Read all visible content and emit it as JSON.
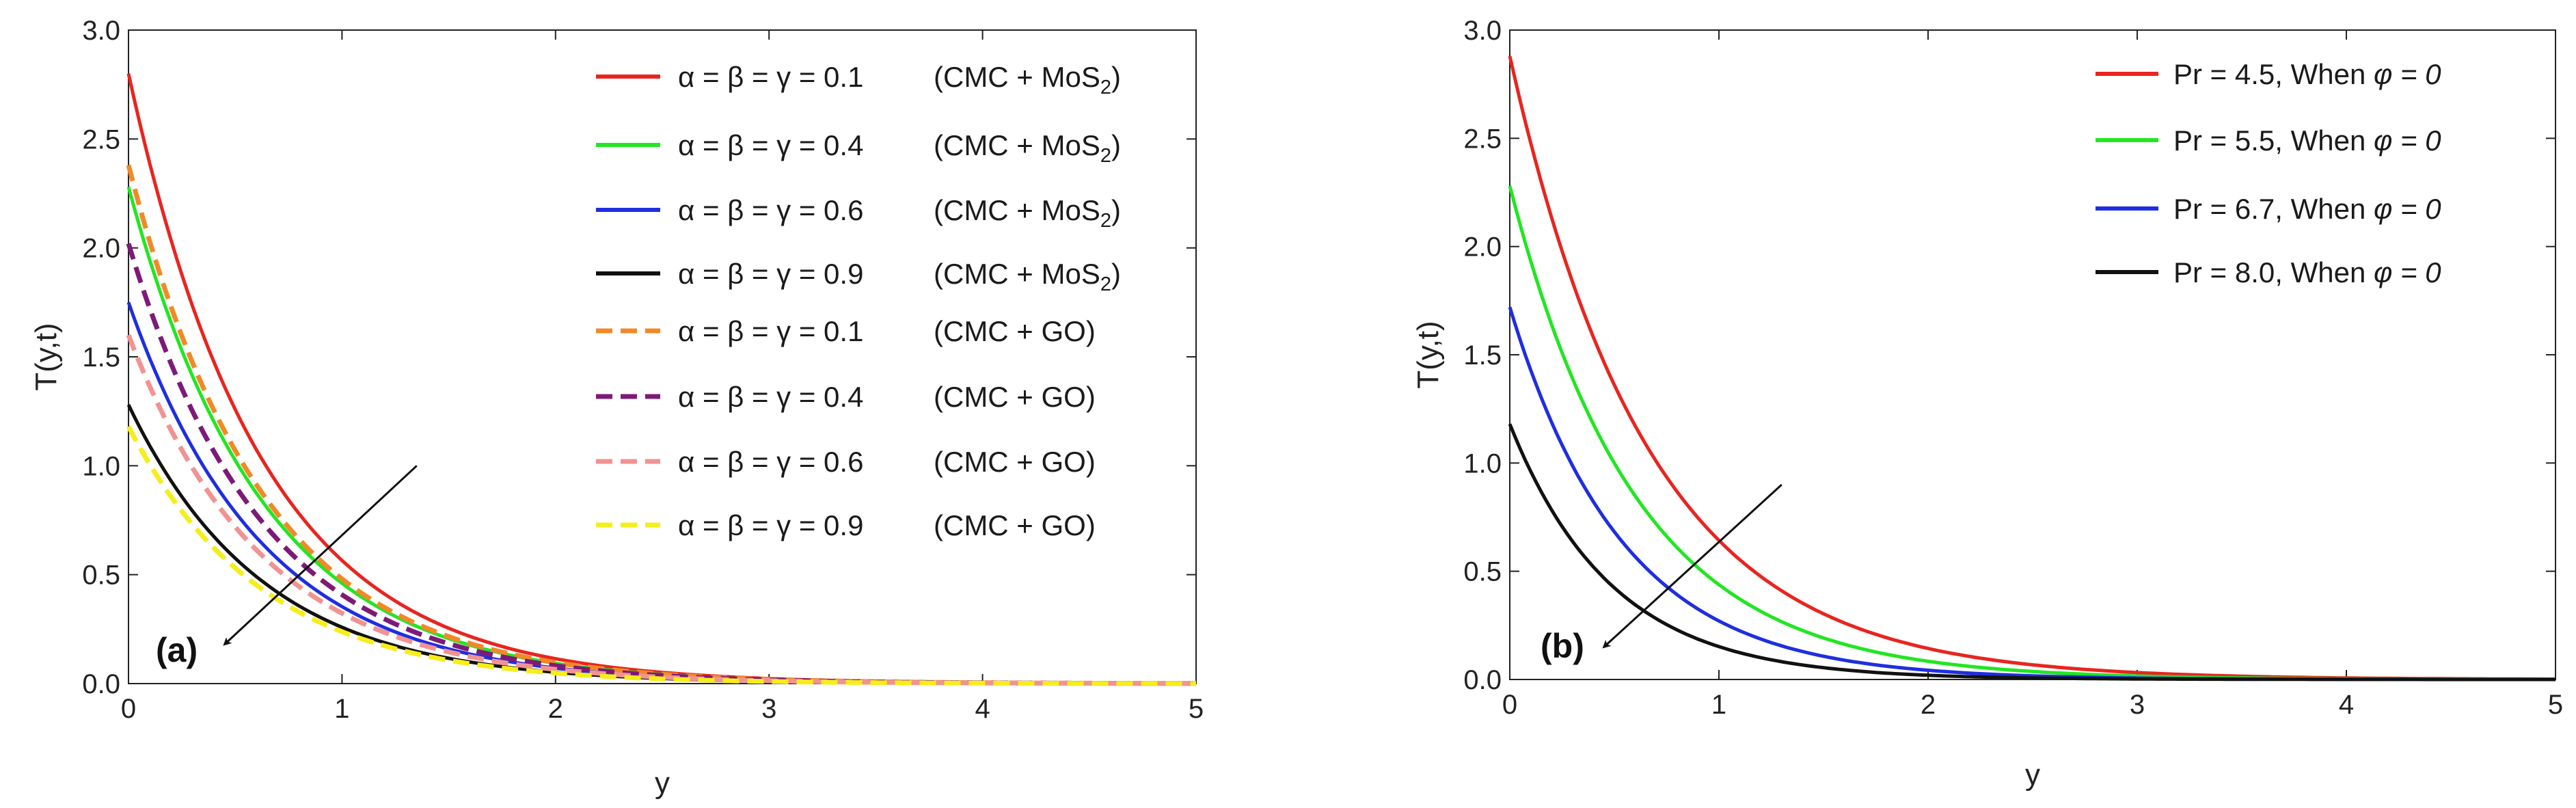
{
  "colors": {
    "red": "#e8251f",
    "green": "#22e622",
    "blue": "#1f2ee0",
    "black": "#111111",
    "orange": "#f08a28",
    "purple": "#7d1a78",
    "pink": "#f29292",
    "yellow": "#f5ee1a"
  },
  "chart_data": [
    {
      "type": "line",
      "panel_label": "(a)",
      "xlabel": "y",
      "ylabel": "T(y,t)",
      "xlim": [
        0,
        5
      ],
      "ylim": [
        0,
        3
      ],
      "xticks": [
        "0",
        "1",
        "2",
        "3",
        "4",
        "5"
      ],
      "yticks": [
        "0.0",
        "0.5",
        "1.0",
        "1.5",
        "2.0",
        "2.5",
        "3.0"
      ],
      "legend_position": "top-right",
      "series": [
        {
          "name": "α = β = γ = 0.1",
          "label_main": "α = β = γ = 0.1",
          "label_fluid": "(CMC + MoS",
          "label_sub": "2",
          "label_close": ")",
          "color_key": "red",
          "dashed": false,
          "T0": 2.8,
          "decay": 1.6
        },
        {
          "name": "α = β = γ = 0.4",
          "label_main": "α = β = γ = 0.4",
          "label_fluid": "(CMC + MoS",
          "label_sub": "2",
          "label_close": ")",
          "color_key": "green",
          "dashed": false,
          "T0": 2.28,
          "decay": 1.6
        },
        {
          "name": "α = β = γ = 0.6",
          "label_main": "α = β = γ = 0.6",
          "label_fluid": "(CMC + MoS",
          "label_sub": "2",
          "label_close": ")",
          "color_key": "blue",
          "dashed": false,
          "T0": 1.75,
          "decay": 1.6
        },
        {
          "name": "α = β = γ = 0.9",
          "label_main": "α = β = γ = 0.9",
          "label_fluid": "(CMC + MoS",
          "label_sub": "2",
          "label_close": ")",
          "color_key": "black",
          "dashed": false,
          "T0": 1.28,
          "decay": 1.6
        },
        {
          "name": "α = β = γ = 0.1",
          "label_main": "α = β = γ = 0.1",
          "label_fluid": "(CMC + GO)",
          "label_sub": "",
          "label_close": "",
          "color_key": "orange",
          "dashed": true,
          "T0": 2.38,
          "decay": 1.6
        },
        {
          "name": "α = β = γ = 0.4",
          "label_main": "α = β = γ = 0.4",
          "label_fluid": "(CMC + GO)",
          "label_sub": "",
          "label_close": "",
          "color_key": "purple",
          "dashed": true,
          "T0": 2.02,
          "decay": 1.6
        },
        {
          "name": "α = β = γ = 0.6",
          "label_main": "α = β = γ = 0.6",
          "label_fluid": "(CMC + GO)",
          "label_sub": "",
          "label_close": "",
          "color_key": "pink",
          "dashed": true,
          "T0": 1.6,
          "decay": 1.6
        },
        {
          "name": "α = β = γ = 0.9",
          "label_main": "α = β = γ = 0.9",
          "label_fluid": "(CMC + GO)",
          "label_sub": "",
          "label_close": "",
          "color_key": "yellow",
          "dashed": true,
          "T0": 1.18,
          "decay": 1.6
        }
      ],
      "arrow": {
        "from": [
          1.35,
          1.0
        ],
        "to": [
          0.45,
          0.18
        ]
      }
    },
    {
      "type": "line",
      "panel_label": "(b)",
      "xlabel": "y",
      "ylabel": "T(y,t)",
      "xlim": [
        0,
        5
      ],
      "ylim": [
        0,
        3
      ],
      "xticks": [
        "0",
        "1",
        "2",
        "3",
        "4",
        "5"
      ],
      "yticks": [
        "0.0",
        "0.5",
        "1.0",
        "1.5",
        "2.0",
        "2.5",
        "3.0"
      ],
      "legend_position": "top-right",
      "series": [
        {
          "name": "Pr = 4.5",
          "label_main": "Pr = 4.5,  When ",
          "label_phi": "φ = 0",
          "color_key": "red",
          "dashed": false,
          "T0": 2.88,
          "decay": 1.5
        },
        {
          "name": "Pr = 5.5",
          "label_main": "Pr = 5.5,  When ",
          "label_phi": "φ = 0",
          "color_key": "green",
          "dashed": false,
          "T0": 2.28,
          "decay": 1.65
        },
        {
          "name": "Pr = 6.7",
          "label_main": "Pr = 6.7,  When ",
          "label_phi": "φ = 0",
          "color_key": "blue",
          "dashed": false,
          "T0": 1.72,
          "decay": 1.85
        },
        {
          "name": "Pr = 8.0",
          "label_main": "Pr = 8.0,  When ",
          "label_phi": "φ = 0",
          "color_key": "black",
          "dashed": false,
          "T0": 1.18,
          "decay": 2.05
        }
      ],
      "arrow": {
        "from": [
          1.3,
          0.9
        ],
        "to": [
          0.45,
          0.15
        ]
      }
    }
  ]
}
